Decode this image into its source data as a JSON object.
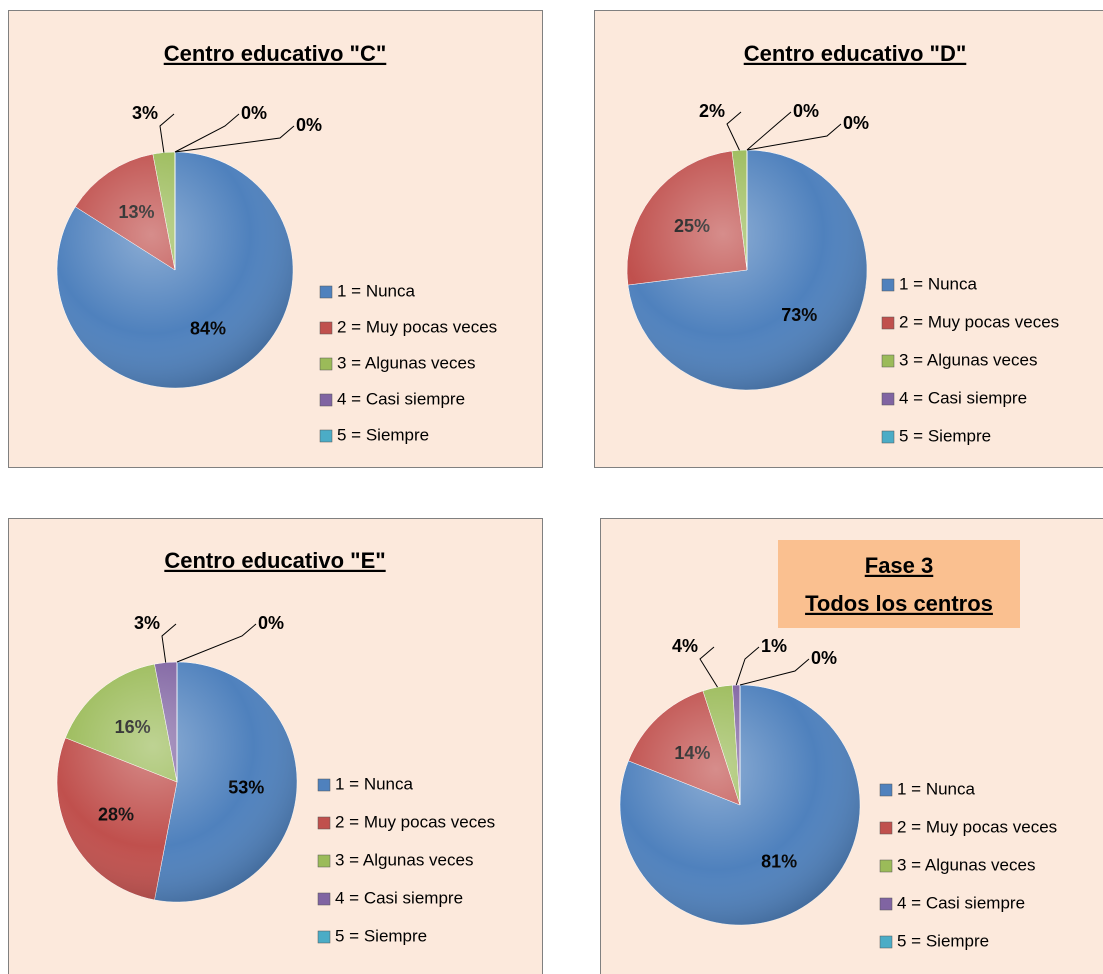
{
  "chart_data": [
    {
      "type": "pie",
      "title": "Centro educativo \"C\"",
      "categories": [
        "1 = Nunca",
        "2 = Muy pocas veces",
        "3 = Algunas veces",
        "4 = Casi siempre",
        "5 = Siempre"
      ],
      "values": [
        84,
        13,
        3,
        0,
        0
      ],
      "value_labels": [
        "84%",
        "13%",
        "3%",
        "0%",
        "0%"
      ],
      "colors": [
        "#4f81bd",
        "#c0504d",
        "#9bbb59",
        "#8064a2",
        "#4bacc6"
      ]
    },
    {
      "type": "pie",
      "title": "Centro educativo \"D\"",
      "categories": [
        "1 = Nunca",
        "2 = Muy pocas veces",
        "3 = Algunas veces",
        "4 = Casi siempre",
        "5 = Siempre"
      ],
      "values": [
        73,
        25,
        2,
        0,
        0
      ],
      "value_labels": [
        "73%",
        "25%",
        "2%",
        "0%",
        "0%"
      ],
      "colors": [
        "#4f81bd",
        "#c0504d",
        "#9bbb59",
        "#8064a2",
        "#4bacc6"
      ]
    },
    {
      "type": "pie",
      "title": "Centro educativo \"E\"",
      "categories": [
        "1 = Nunca",
        "2 = Muy pocas veces",
        "3 = Algunas veces",
        "4 = Casi siempre",
        "5 = Siempre"
      ],
      "values": [
        53,
        28,
        16,
        3,
        0
      ],
      "value_labels": [
        "53%",
        "28%",
        "16%",
        "3%",
        "0%"
      ],
      "colors": [
        "#4f81bd",
        "#c0504d",
        "#9bbb59",
        "#8064a2",
        "#4bacc6"
      ]
    },
    {
      "type": "pie",
      "title": [
        "Fase 3",
        "Todos los centros"
      ],
      "categories": [
        "1 = Nunca",
        "2 = Muy pocas veces",
        "3 = Algunas veces",
        "4 = Casi siempre",
        "5 = Siempre"
      ],
      "values": [
        81,
        14,
        4,
        1,
        0
      ],
      "value_labels": [
        "81%",
        "14%",
        "4%",
        "1%",
        "0%"
      ],
      "colors": [
        "#4f81bd",
        "#c0504d",
        "#9bbb59",
        "#8064a2",
        "#4bacc6"
      ]
    }
  ]
}
